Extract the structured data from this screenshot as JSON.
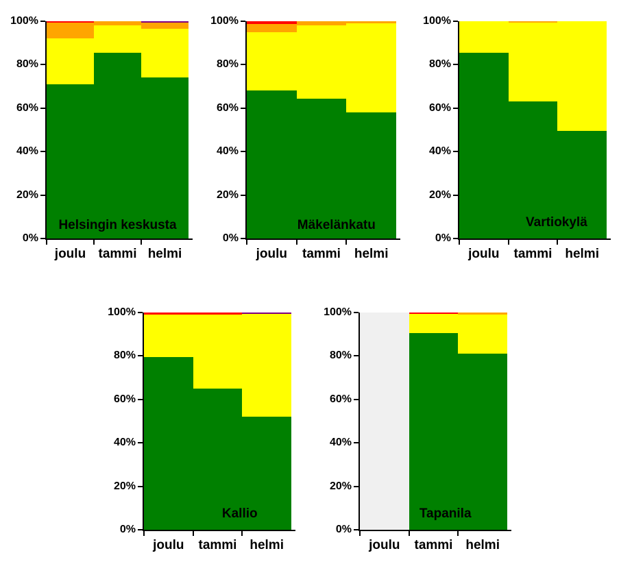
{
  "palette": {
    "green": "#008000",
    "yellow": "#FFFF00",
    "orange": "#FFA500",
    "red": "#FF0000",
    "purple": "#800080",
    "no_data_gray": "#F0F0F0",
    "axis": "#000000"
  },
  "chart_data": [
    {
      "type": "bar",
      "subtype": "stacked-100pct",
      "title": "Helsingin keskusta",
      "categories": [
        "joulu",
        "tammi",
        "helmi"
      ],
      "yticks": [
        "0%",
        "20%",
        "40%",
        "60%",
        "80%",
        "100%"
      ],
      "ylim": [
        0,
        100
      ],
      "unit": "%",
      "grid": false,
      "legend": "none",
      "series": [
        {
          "name": "green",
          "color": "#008000",
          "values": [
            71,
            85.5,
            74
          ]
        },
        {
          "name": "yellow",
          "color": "#FFFF00",
          "values": [
            21,
            12.6,
            22.5
          ]
        },
        {
          "name": "orange",
          "color": "#FFA500",
          "values": [
            7.5,
            1.9,
            2.8
          ]
        },
        {
          "name": "red",
          "color": "#FF0000",
          "values": [
            0.5,
            0,
            0
          ]
        },
        {
          "name": "purple",
          "color": "#800080",
          "values": [
            0,
            0,
            0.7
          ]
        }
      ],
      "no_data_columns": []
    },
    {
      "type": "bar",
      "subtype": "stacked-100pct",
      "title": "Mäkelänkatu",
      "categories": [
        "joulu",
        "tammi",
        "helmi"
      ],
      "yticks": [
        "0%",
        "20%",
        "40%",
        "60%",
        "80%",
        "100%"
      ],
      "ylim": [
        0,
        100
      ],
      "unit": "%",
      "grid": false,
      "legend": "none",
      "series": [
        {
          "name": "green",
          "color": "#008000",
          "values": [
            68,
            64.5,
            58
          ]
        },
        {
          "name": "yellow",
          "color": "#FFFF00",
          "values": [
            27,
            33.5,
            41
          ]
        },
        {
          "name": "orange",
          "color": "#FFA500",
          "values": [
            3.8,
            2,
            1
          ]
        },
        {
          "name": "red",
          "color": "#FF0000",
          "values": [
            1.2,
            0,
            0
          ]
        },
        {
          "name": "purple",
          "color": "#800080",
          "values": [
            0,
            0,
            0
          ]
        }
      ],
      "no_data_columns": []
    },
    {
      "type": "bar",
      "subtype": "stacked-100pct",
      "title": "Vartiokylä",
      "categories": [
        "joulu",
        "tammi",
        "helmi"
      ],
      "yticks": [
        "0%",
        "20%",
        "40%",
        "60%",
        "80%",
        "100%"
      ],
      "ylim": [
        0,
        100
      ],
      "unit": "%",
      "grid": false,
      "legend": "none",
      "series": [
        {
          "name": "green",
          "color": "#008000",
          "values": [
            85.5,
            63,
            49.5
          ]
        },
        {
          "name": "yellow",
          "color": "#FFFF00",
          "values": [
            14.5,
            36.5,
            50.5
          ]
        },
        {
          "name": "orange",
          "color": "#FFA500",
          "values": [
            0,
            0.5,
            0
          ]
        },
        {
          "name": "red",
          "color": "#FF0000",
          "values": [
            0,
            0,
            0
          ]
        },
        {
          "name": "purple",
          "color": "#800080",
          "values": [
            0,
            0,
            0
          ]
        }
      ],
      "no_data_columns": []
    },
    {
      "type": "bar",
      "subtype": "stacked-100pct",
      "title": "Kallio",
      "categories": [
        "joulu",
        "tammi",
        "helmi"
      ],
      "yticks": [
        "0%",
        "20%",
        "40%",
        "60%",
        "80%",
        "100%"
      ],
      "ylim": [
        0,
        100
      ],
      "unit": "%",
      "grid": false,
      "legend": "none",
      "series": [
        {
          "name": "green",
          "color": "#008000",
          "values": [
            79.5,
            65,
            52
          ]
        },
        {
          "name": "yellow",
          "color": "#FFFF00",
          "values": [
            19.5,
            34,
            47.5
          ]
        },
        {
          "name": "orange",
          "color": "#FFA500",
          "values": [
            0,
            0,
            0
          ]
        },
        {
          "name": "red",
          "color": "#FF0000",
          "values": [
            1,
            1,
            0
          ]
        },
        {
          "name": "purple",
          "color": "#800080",
          "values": [
            0,
            0,
            0.5
          ]
        }
      ],
      "no_data_columns": []
    },
    {
      "type": "bar",
      "subtype": "stacked-100pct",
      "title": "Tapanila",
      "categories": [
        "joulu",
        "tammi",
        "helmi"
      ],
      "yticks": [
        "0%",
        "20%",
        "40%",
        "60%",
        "80%",
        "100%"
      ],
      "ylim": [
        0,
        100
      ],
      "unit": "%",
      "grid": false,
      "legend": "none",
      "series": [
        {
          "name": "green",
          "color": "#008000",
          "values": [
            0,
            90.5,
            81
          ]
        },
        {
          "name": "yellow",
          "color": "#FFFF00",
          "values": [
            0,
            9,
            18
          ]
        },
        {
          "name": "orange",
          "color": "#FFA500",
          "values": [
            0,
            0,
            1
          ]
        },
        {
          "name": "red",
          "color": "#FF0000",
          "values": [
            0,
            0.5,
            0
          ]
        },
        {
          "name": "purple",
          "color": "#800080",
          "values": [
            0,
            0,
            0
          ]
        }
      ],
      "no_data_columns": [
        0
      ]
    }
  ]
}
